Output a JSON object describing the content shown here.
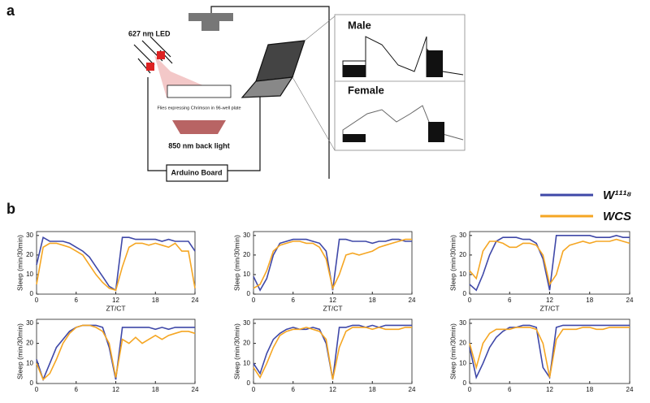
{
  "panel_a": {
    "label": "a",
    "led": "627 nm LED",
    "plate": "Flies expressing Chrimson in 96-well plate",
    "backlight": "850 nm back light",
    "board": "Arduino Board",
    "male": "Male",
    "female": "Female"
  },
  "panel_b": {
    "label": "b"
  },
  "chart_data": [
    {
      "type": "line",
      "ylabel": "Sleep (min/30min)",
      "xlabel": "ZT/CT",
      "xlim": [
        0,
        24
      ],
      "xticks": [
        0,
        6,
        12,
        18,
        24
      ],
      "ylim": [
        0,
        32
      ],
      "yticks": [
        0,
        10,
        20,
        30
      ],
      "x": [
        0,
        1,
        2,
        3,
        4,
        5,
        6,
        7,
        8,
        9,
        10,
        11,
        12,
        13,
        14,
        15,
        16,
        17,
        18,
        19,
        20,
        21,
        22,
        23,
        24
      ],
      "series": [
        {
          "name": "W¹¹¹⁸",
          "color": "#3f48a8",
          "values": [
            15,
            29,
            27,
            27,
            27,
            26,
            24,
            22,
            19,
            14,
            9,
            4,
            2,
            29,
            29,
            28,
            28,
            28,
            28,
            27,
            28,
            27,
            27,
            27,
            22
          ]
        },
        {
          "name": "WCS",
          "color": "#f5a623",
          "values": [
            5,
            24,
            26,
            26,
            25,
            24,
            22,
            20,
            15,
            10,
            6,
            3,
            2,
            14,
            24,
            26,
            26,
            25,
            26,
            25,
            24,
            26,
            22,
            22,
            3
          ]
        }
      ]
    },
    {
      "type": "line",
      "ylabel": "Sleep (min/30min)",
      "xlabel": "ZT/CT",
      "xlim": [
        0,
        24
      ],
      "xticks": [
        0,
        6,
        12,
        18,
        24
      ],
      "ylim": [
        0,
        32
      ],
      "yticks": [
        0,
        10,
        20,
        30
      ],
      "x": [
        0,
        1,
        2,
        3,
        4,
        5,
        6,
        7,
        8,
        9,
        10,
        11,
        12,
        13,
        14,
        15,
        16,
        17,
        18,
        19,
        20,
        21,
        22,
        23,
        24
      ],
      "series": [
        {
          "name": "W¹¹¹⁸",
          "color": "#3f48a8",
          "values": [
            9,
            2,
            8,
            20,
            26,
            27,
            28,
            28,
            28,
            27,
            26,
            22,
            2,
            28,
            28,
            27,
            27,
            27,
            26,
            27,
            27,
            28,
            28,
            27,
            27
          ]
        },
        {
          "name": "WCS",
          "color": "#f5a623",
          "values": [
            3,
            5,
            12,
            22,
            25,
            26,
            27,
            27,
            26,
            26,
            24,
            18,
            3,
            10,
            20,
            21,
            20,
            21,
            22,
            24,
            25,
            26,
            27,
            28,
            28
          ]
        }
      ]
    },
    {
      "type": "line",
      "ylabel": "Sleep (min/30min)",
      "xlabel": "ZT/CT",
      "xlim": [
        0,
        24
      ],
      "xticks": [
        0,
        6,
        12,
        18,
        24
      ],
      "ylim": [
        0,
        32
      ],
      "yticks": [
        0,
        10,
        20,
        30
      ],
      "x": [
        0,
        1,
        2,
        3,
        4,
        5,
        6,
        7,
        8,
        9,
        10,
        11,
        12,
        13,
        14,
        15,
        16,
        17,
        18,
        19,
        20,
        21,
        22,
        23,
        24
      ],
      "series": [
        {
          "name": "W¹¹¹⁸",
          "color": "#3f48a8",
          "values": [
            5,
            2,
            10,
            20,
            27,
            29,
            29,
            29,
            28,
            28,
            26,
            18,
            2,
            30,
            30,
            30,
            30,
            30,
            30,
            29,
            29,
            29,
            30,
            29,
            29
          ]
        },
        {
          "name": "WCS",
          "color": "#f5a623",
          "values": [
            12,
            8,
            22,
            27,
            27,
            26,
            24,
            24,
            26,
            26,
            25,
            20,
            5,
            10,
            22,
            25,
            26,
            27,
            26,
            27,
            27,
            27,
            28,
            27,
            26
          ]
        }
      ]
    },
    {
      "type": "line",
      "ylabel": "Sleep (min/30min)",
      "xlim": [
        0,
        24
      ],
      "xticks": [
        0,
        6,
        12,
        18,
        24
      ],
      "ylim": [
        0,
        32
      ],
      "yticks": [
        0,
        10,
        20,
        30
      ],
      "x": [
        0,
        1,
        2,
        3,
        4,
        5,
        6,
        7,
        8,
        9,
        10,
        11,
        12,
        13,
        14,
        15,
        16,
        17,
        18,
        19,
        20,
        21,
        22,
        23,
        24
      ],
      "series": [
        {
          "name": "W¹¹¹⁸",
          "color": "#3f48a8",
          "values": [
            12,
            2,
            10,
            18,
            22,
            26,
            28,
            29,
            29,
            29,
            28,
            18,
            2,
            28,
            28,
            28,
            28,
            28,
            27,
            28,
            27,
            28,
            28,
            28,
            28
          ]
        },
        {
          "name": "WCS",
          "color": "#f5a623",
          "values": [
            10,
            2,
            5,
            12,
            20,
            25,
            28,
            29,
            29,
            28,
            26,
            20,
            3,
            22,
            20,
            23,
            20,
            22,
            24,
            22,
            24,
            25,
            26,
            26,
            25
          ]
        }
      ]
    },
    {
      "type": "line",
      "ylabel": "Sleep (min/30min)",
      "xlim": [
        0,
        24
      ],
      "xticks": [
        0,
        6,
        12,
        18,
        24
      ],
      "ylim": [
        0,
        32
      ],
      "yticks": [
        0,
        10,
        20,
        30
      ],
      "x": [
        0,
        1,
        2,
        3,
        4,
        5,
        6,
        7,
        8,
        9,
        10,
        11,
        12,
        13,
        14,
        15,
        16,
        17,
        18,
        19,
        20,
        21,
        22,
        23,
        24
      ],
      "series": [
        {
          "name": "W¹¹¹⁸",
          "color": "#3f48a8",
          "values": [
            10,
            5,
            15,
            22,
            25,
            27,
            28,
            27,
            27,
            28,
            27,
            20,
            2,
            28,
            28,
            29,
            29,
            28,
            29,
            28,
            29,
            29,
            29,
            29,
            29
          ]
        },
        {
          "name": "WCS",
          "color": "#f5a623",
          "values": [
            8,
            3,
            10,
            18,
            24,
            26,
            27,
            27,
            28,
            27,
            26,
            22,
            2,
            18,
            26,
            28,
            28,
            28,
            27,
            28,
            27,
            27,
            27,
            28,
            28
          ]
        }
      ]
    },
    {
      "type": "line",
      "ylabel": "Sleep (min/30min)",
      "xlim": [
        0,
        24
      ],
      "xticks": [
        0,
        6,
        12,
        18,
        24
      ],
      "ylim": [
        0,
        32
      ],
      "yticks": [
        0,
        10,
        20,
        30
      ],
      "x": [
        0,
        1,
        2,
        3,
        4,
        5,
        6,
        7,
        8,
        9,
        10,
        11,
        12,
        13,
        14,
        15,
        16,
        17,
        18,
        19,
        20,
        21,
        22,
        23,
        24
      ],
      "series": [
        {
          "name": "W¹¹¹⁸",
          "color": "#3f48a8",
          "values": [
            18,
            3,
            10,
            18,
            23,
            26,
            28,
            28,
            29,
            29,
            28,
            8,
            3,
            28,
            29,
            29,
            29,
            29,
            29,
            29,
            29,
            29,
            29,
            29,
            29
          ]
        },
        {
          "name": "WCS",
          "color": "#f5a623",
          "values": [
            20,
            8,
            20,
            25,
            27,
            27,
            27,
            28,
            28,
            28,
            27,
            20,
            3,
            22,
            27,
            27,
            27,
            28,
            28,
            27,
            27,
            28,
            28,
            28,
            28
          ]
        }
      ]
    }
  ]
}
